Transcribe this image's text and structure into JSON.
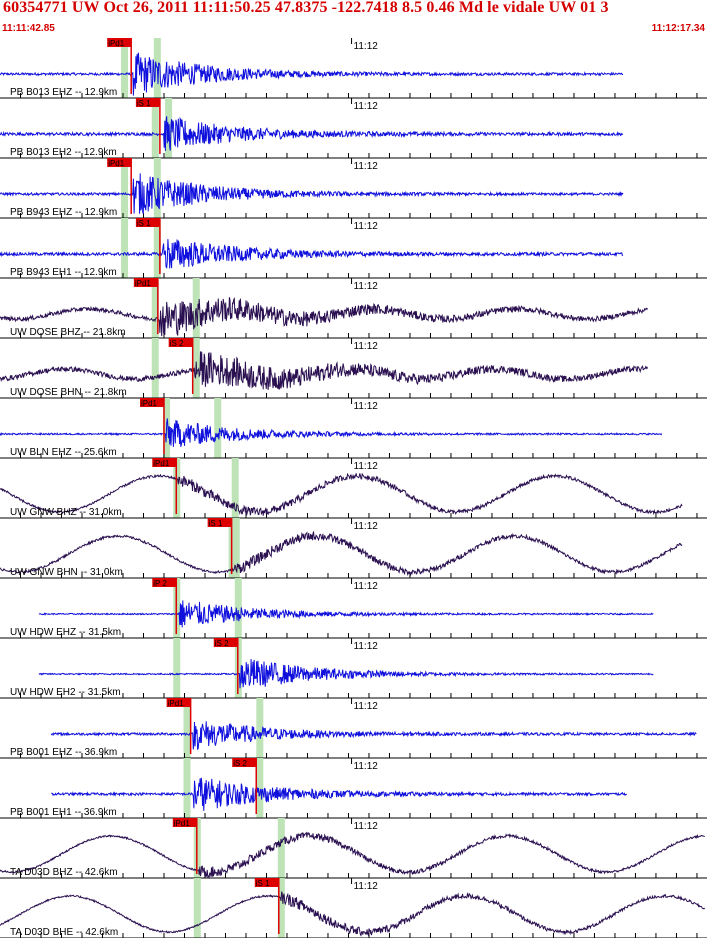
{
  "header": {
    "title": "60354771 UW Oct 26, 2011 11:11:50.25    47.8375 -122.7418  8.5 0.46 Md le vidale UW 01    3",
    "time_start": "11:11:42.85",
    "time_end": "11:12:17.34"
  },
  "colors": {
    "trace_blue": "#1010dd",
    "trace_dark": "#2a1050",
    "pick_red": "#dd0000",
    "window_green": "#bde3b7",
    "header_red": "#d40000"
  },
  "chart_data": {
    "type": "line",
    "title": "60354771 UW Oct 26, 2011 11:11:50.25    47.8375 -122.7418  8.5 0.46 Md le vidale UW 01    3",
    "x_range_seconds": [
      0,
      34.49
    ],
    "x_tick_interval_seconds": 1,
    "minute_label": "11:12",
    "minute_mark_seconds": 17.15,
    "grid": false,
    "traces": [
      {
        "label": "PB B013 EHZ -- 12.9km",
        "color": "blue",
        "pick": "iPd1",
        "pick_s": 6.4,
        "win_s": [
          6.05,
          7.65
        ],
        "onset_s": 6.5,
        "amp": 1.0,
        "env": 0.18,
        "wave": "burst",
        "t_start": 0.0,
        "t_end": 30.4
      },
      {
        "label": "PB B013 EH2 -- 12.9km",
        "color": "blue",
        "pick": "iS 1",
        "pick_s": 7.8,
        "win_s": [
          7.55,
          8.2
        ],
        "onset_s": 8.0,
        "amp": 0.8,
        "env": 0.22,
        "wave": "burst",
        "t_start": 0.0,
        "t_end": 30.4
      },
      {
        "label": "PB B943 EHZ -- 12.9km",
        "color": "blue",
        "pick": "iPd1",
        "pick_s": 6.4,
        "win_s": [
          6.05,
          7.65
        ],
        "onset_s": 6.5,
        "amp": 1.0,
        "env": 0.18,
        "wave": "burst",
        "t_start": 0.0,
        "t_end": 30.4
      },
      {
        "label": "PB B943 EH1 -- 12.9km",
        "color": "blue",
        "pick": "iS 1",
        "pick_s": 7.8,
        "win_s": [
          6.05,
          7.65
        ],
        "onset_s": 7.9,
        "amp": 0.8,
        "env": 0.22,
        "wave": "burst",
        "t_start": 0.0,
        "t_end": 30.4
      },
      {
        "label": "UW DOSE BHZ -- 21.8km",
        "color": "dark",
        "pick": "iPd1",
        "pick_s": 7.7,
        "win_s": [
          7.55,
          9.55
        ],
        "onset_s": 7.8,
        "amp": 0.9,
        "env": 0.1,
        "wave": "dark",
        "t_start": 0.0,
        "t_end": 31.6
      },
      {
        "label": "UW DOSE BHN -- 21.8km",
        "color": "dark",
        "pick": "iS 2",
        "pick_s": 9.4,
        "win_s": [
          7.55,
          9.55
        ],
        "onset_s": 9.5,
        "amp": 0.85,
        "env": 0.12,
        "wave": "dark",
        "t_start": 0.0,
        "t_end": 31.6
      },
      {
        "label": "UW BLN EHZ -- 25.6km",
        "color": "blue",
        "pick": "iPd1",
        "pick_s": 8.0,
        "win_s": [
          8.1,
          10.6
        ],
        "onset_s": 8.1,
        "amp": 0.7,
        "env": 0.12,
        "wave": "burst",
        "t_start": 0.0,
        "t_end": 32.3
      },
      {
        "label": "UW GNW BHZ -- 31.0km",
        "color": "dark",
        "pick": "iPd1",
        "pick_s": 8.6,
        "win_s": [
          8.6,
          11.45
        ],
        "onset_s": 8.7,
        "amp": 0.9,
        "env": 0.08,
        "wave": "longdark",
        "t_start": 0.0,
        "t_end": 33.3
      },
      {
        "label": "UW GNW BHN -- 31.0km",
        "color": "dark",
        "pick": "iS 1",
        "pick_s": 11.3,
        "win_s": [
          11.3,
          11.5
        ],
        "onset_s": 11.4,
        "amp": 0.9,
        "env": 0.08,
        "wave": "longdark",
        "t_start": 0.0,
        "t_end": 33.3
      },
      {
        "label": "UW HDW EHZ -- 31.5km",
        "color": "blue",
        "pick": "iP 2",
        "pick_s": 8.6,
        "win_s": [
          8.6,
          11.6
        ],
        "onset_s": 8.7,
        "amp": 0.7,
        "env": 0.1,
        "wave": "burst",
        "t_start": 1.9,
        "t_end": 31.9
      },
      {
        "label": "UW HDW EH2 -- 31.5km",
        "color": "blue",
        "pick": "iS 2",
        "pick_s": 11.6,
        "win_s": [
          8.6,
          11.6
        ],
        "onset_s": 11.7,
        "amp": 0.8,
        "env": 0.1,
        "wave": "burst",
        "t_start": 1.9,
        "t_end": 31.9
      },
      {
        "label": "PB B001 EHZ -- 36.9km",
        "color": "blue",
        "pick": "iPd1",
        "pick_s": 9.3,
        "win_s": [
          9.1,
          12.65
        ],
        "onset_s": 9.4,
        "amp": 0.7,
        "env": 0.18,
        "wave": "burst",
        "t_start": 2.5,
        "t_end": 34.0
      },
      {
        "label": "PB B001 EH1 -- 36.9km",
        "color": "blue",
        "pick": "iS 2",
        "pick_s": 12.5,
        "win_s": [
          9.1,
          12.65
        ],
        "onset_s": 9.4,
        "amp": 0.85,
        "env": 0.18,
        "wave": "burst",
        "t_start": 2.5,
        "t_end": 30.6
      },
      {
        "label": "TA D03D BHZ -- 42.6km",
        "color": "dark",
        "pick": "iPd1",
        "pick_s": 9.6,
        "win_s": [
          9.6,
          13.7
        ],
        "onset_s": 9.7,
        "amp": 0.9,
        "env": 0.06,
        "wave": "longdark",
        "t_start": 0.0,
        "t_end": 34.4
      },
      {
        "label": "TA D03D BHE -- 42.6km",
        "color": "dark",
        "pick": "iS 1",
        "pick_s": 13.6,
        "win_s": [
          9.6,
          13.7
        ],
        "onset_s": 13.7,
        "amp": 0.95,
        "env": 0.06,
        "wave": "longdark",
        "t_start": 0.0,
        "t_end": 34.4
      }
    ]
  }
}
